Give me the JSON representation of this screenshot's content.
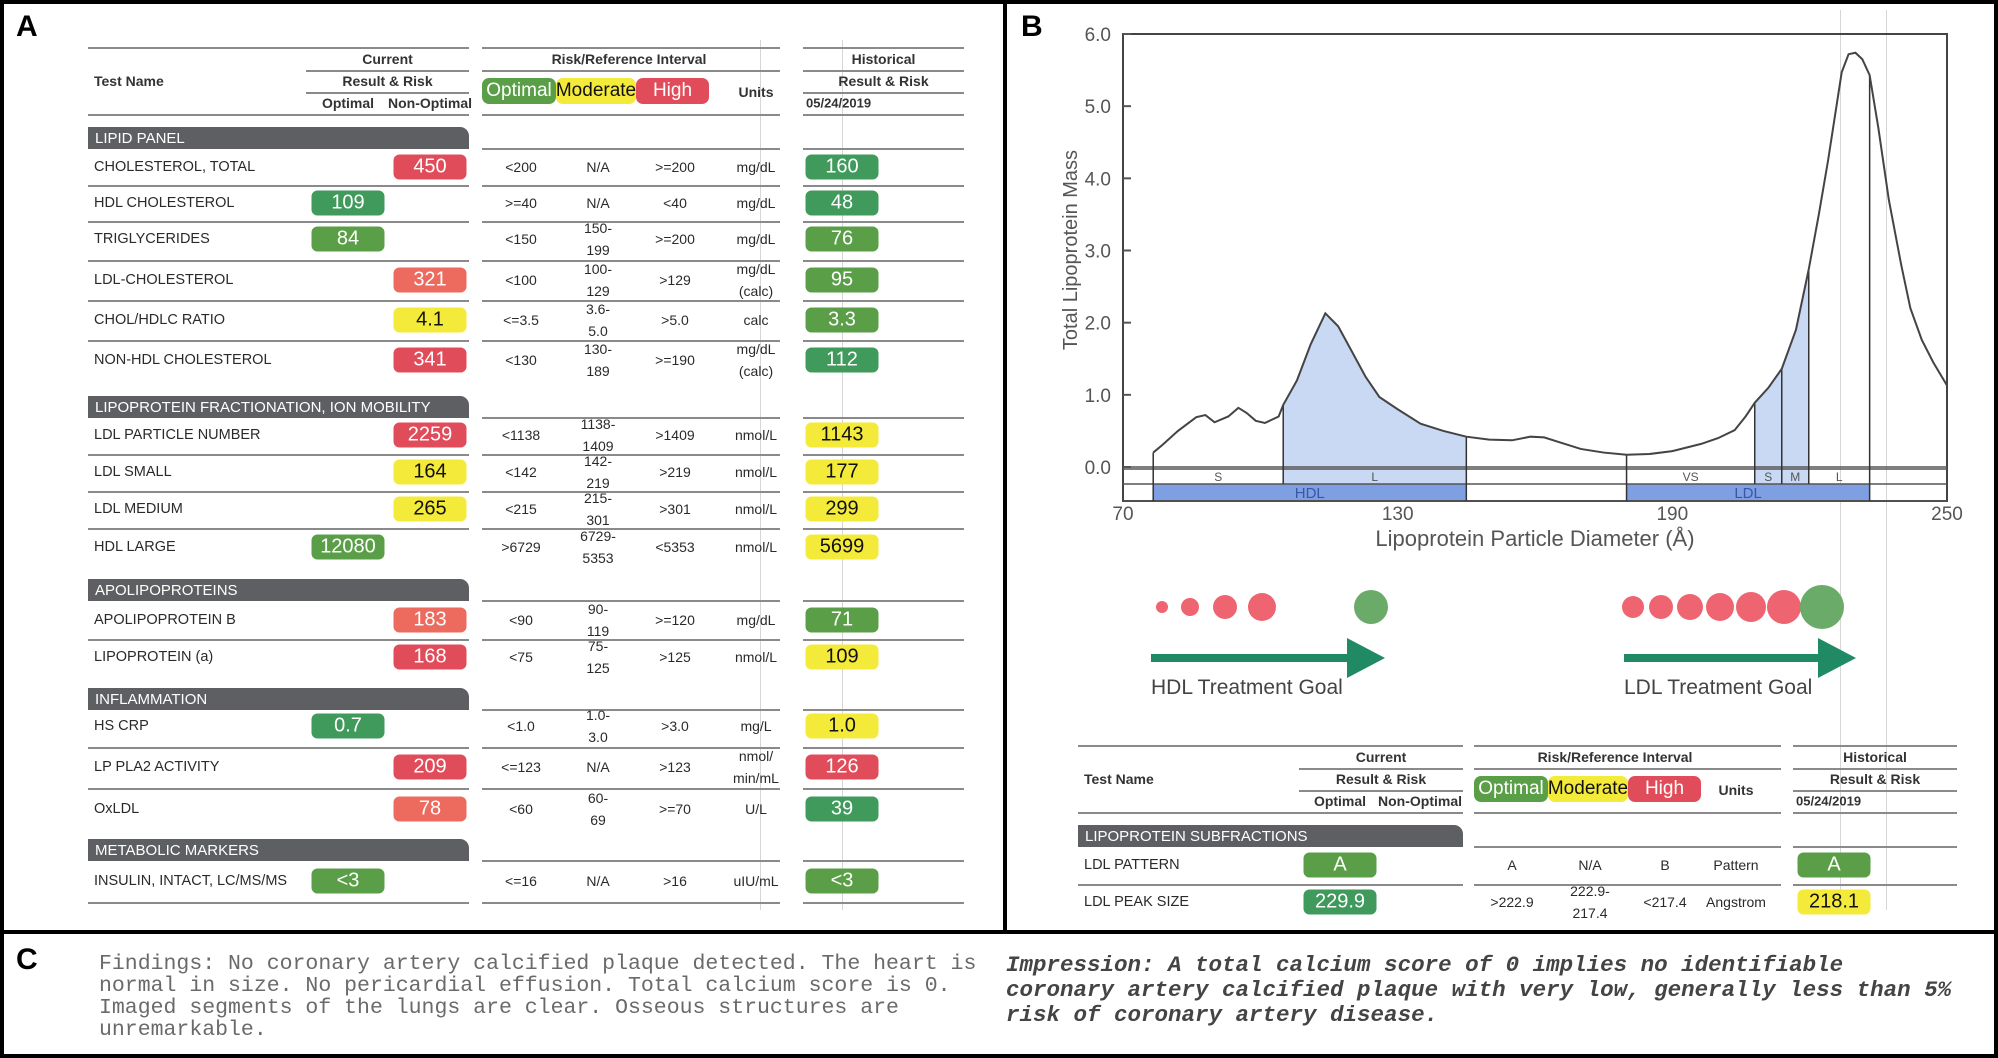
{
  "panel_labels": {
    "a": "A",
    "b": "B",
    "c": "C"
  },
  "colors": {
    "optimal": "#3f9a5c",
    "optimal_alt": "#5a9f48",
    "moderate": "#f4ea3a",
    "high": "#e04c59",
    "high_alt": "#ec6a5e",
    "section": "#5e5f62",
    "hdl_shade": "#c9d9f3",
    "band_blue": "#7f9fe3",
    "arrow": "#1f8a64",
    "dot_red": "#ee6470",
    "dot_green": "#6aab6a"
  },
  "panel_a": {
    "header": {
      "test_name": "Test Name",
      "current": "Current",
      "result_risk": "Result & Risk",
      "optimal": "Optimal",
      "non_optimal": "Non-Optimal",
      "risk_interval": "Risk/Reference Interval",
      "legend_optimal": "Optimal",
      "legend_moderate": "Moderate",
      "legend_high": "High",
      "units": "Units",
      "historical": "Historical",
      "hist_result_risk": "Result & Risk",
      "hist_date": "05/24/2019"
    },
    "sections": [
      {
        "title": "LIPID PANEL",
        "rows": [
          {
            "name": "CHOLESTEROL, TOTAL",
            "current": "450",
            "column": "non_optimal",
            "status": "high",
            "optimal": "<200",
            "moderate": "N/A",
            "high": ">=200",
            "units": "mg/dL",
            "historical": "160",
            "historical_status": "optimal"
          },
          {
            "name": "HDL CHOLESTEROL",
            "current": "109",
            "column": "optimal",
            "status": "optimal",
            "optimal": ">=40",
            "moderate": "N/A",
            "high": "<40",
            "units": "mg/dL",
            "historical": "48",
            "historical_status": "optimal"
          },
          {
            "name": "TRIGLYCERIDES",
            "current": "84",
            "column": "optimal",
            "status": "optimal_alt",
            "optimal": "<150",
            "moderate": "150-199",
            "high": ">=200",
            "units": "mg/dL",
            "historical": "76",
            "historical_status": "optimal_alt"
          },
          {
            "name": "LDL-CHOLESTEROL",
            "current": "321",
            "column": "non_optimal",
            "status": "high_alt",
            "optimal": "<100",
            "moderate": "100-129",
            "high": ">129",
            "units": "mg/dL\n(calc)",
            "historical": "95",
            "historical_status": "optimal_alt"
          },
          {
            "name": "CHOL/HDLC RATIO",
            "current": "4.1",
            "column": "non_optimal",
            "status": "moderate",
            "optimal": "<=3.5",
            "moderate": "3.6-5.0",
            "high": ">5.0",
            "units": "calc",
            "historical": "3.3",
            "historical_status": "optimal_alt"
          },
          {
            "name": "NON-HDL CHOLESTEROL",
            "current": "341",
            "column": "non_optimal",
            "status": "high",
            "optimal": "<130",
            "moderate": "130-189",
            "high": ">=190",
            "units": "mg/dL\n(calc)",
            "historical": "112",
            "historical_status": "optimal"
          }
        ]
      },
      {
        "title": "LIPOPROTEIN FRACTIONATION, ION MOBILITY",
        "rows": [
          {
            "name": "LDL PARTICLE NUMBER",
            "current": "2259",
            "column": "non_optimal",
            "status": "high",
            "optimal": "<1138",
            "moderate": "1138-1409",
            "high": ">1409",
            "units": "nmol/L",
            "historical": "1143",
            "historical_status": "moderate"
          },
          {
            "name": "LDL SMALL",
            "current": "164",
            "column": "non_optimal",
            "status": "moderate",
            "optimal": "<142",
            "moderate": "142-219",
            "high": ">219",
            "units": "nmol/L",
            "historical": "177",
            "historical_status": "moderate"
          },
          {
            "name": "LDL MEDIUM",
            "current": "265",
            "column": "non_optimal",
            "status": "moderate",
            "optimal": "<215",
            "moderate": "215-301",
            "high": ">301",
            "units": "nmol/L",
            "historical": "299",
            "historical_status": "moderate"
          },
          {
            "name": "HDL LARGE",
            "current": "12080",
            "column": "optimal",
            "status": "optimal_alt",
            "optimal": ">6729",
            "moderate": "6729-5353",
            "high": "<5353",
            "units": "nmol/L",
            "historical": "5699",
            "historical_status": "moderate"
          }
        ]
      },
      {
        "title": "APOLIPOPROTEINS",
        "rows": [
          {
            "name": "APOLIPOPROTEIN B",
            "current": "183",
            "column": "non_optimal",
            "status": "high_alt",
            "optimal": "<90",
            "moderate": "90-119",
            "high": ">=120",
            "units": "mg/dL",
            "historical": "71",
            "historical_status": "optimal_alt"
          },
          {
            "name": "LIPOPROTEIN (a)",
            "current": "168",
            "column": "non_optimal",
            "status": "high",
            "optimal": "<75",
            "moderate": "75-125",
            "high": ">125",
            "units": "nmol/L",
            "historical": "109",
            "historical_status": "moderate"
          }
        ]
      },
      {
        "title": "INFLAMMATION",
        "rows": [
          {
            "name": "HS CRP",
            "current": "0.7",
            "column": "optimal",
            "status": "optimal",
            "optimal": "<1.0",
            "moderate": "1.0-3.0",
            "high": ">3.0",
            "units": "mg/L",
            "historical": "1.0",
            "historical_status": "moderate"
          },
          {
            "name": "LP PLA2 ACTIVITY",
            "current": "209",
            "column": "non_optimal",
            "status": "high",
            "optimal": "<=123",
            "moderate": "N/A",
            "high": ">123",
            "units": "nmol/\nmin/mL",
            "historical": "126",
            "historical_status": "high"
          },
          {
            "name": "OxLDL",
            "current": "78",
            "column": "non_optimal",
            "status": "high_alt",
            "optimal": "<60",
            "moderate": "60-69",
            "high": ">=70",
            "units": "U/L",
            "historical": "39",
            "historical_status": "optimal"
          }
        ]
      },
      {
        "title": "METABOLIC MARKERS",
        "rows": [
          {
            "name": "INSULIN, INTACT, LC/MS/MS",
            "current": "<3",
            "column": "optimal",
            "status": "optimal_alt",
            "optimal": "<=16",
            "moderate": "N/A",
            "high": ">16",
            "units": "uIU/mL",
            "historical": "<3",
            "historical_status": "optimal_alt"
          }
        ]
      }
    ]
  },
  "panel_b": {
    "chart_data": {
      "type": "area",
      "title": "",
      "xlabel": "Lipoprotein Particle Diameter (Å)",
      "ylabel": "Total Lipoprotein Mass",
      "xlim": [
        70,
        250
      ],
      "ylim": [
        0,
        6
      ],
      "x_ticks": [
        "70",
        "130",
        "190",
        "250"
      ],
      "x_tick_values": [
        70,
        130,
        190,
        250
      ],
      "y_ticks": [
        "0.0",
        "1.0",
        "2.0",
        "3.0",
        "4.0",
        "5.0",
        "6.0"
      ],
      "y_tick_values": [
        0,
        1,
        2,
        3,
        4,
        5,
        6
      ],
      "grid": false,
      "series": [
        {
          "name": "Total Lipoprotein Mass",
          "points": [
            [
              76.6,
              0.2
            ],
            [
              78.5,
              0.3
            ],
            [
              82,
              0.5
            ],
            [
              86,
              0.69
            ],
            [
              88,
              0.72
            ],
            [
              90,
              0.62
            ],
            [
              93,
              0.7
            ],
            [
              95.2,
              0.82
            ],
            [
              97,
              0.75
            ],
            [
              99,
              0.64
            ],
            [
              101,
              0.61
            ],
            [
              104,
              0.7
            ],
            [
              105,
              0.86
            ],
            [
              108,
              1.2
            ],
            [
              111,
              1.7
            ],
            [
              114.2,
              2.13
            ],
            [
              117,
              1.95
            ],
            [
              120,
              1.6
            ],
            [
              123,
              1.25
            ],
            [
              126,
              0.97
            ],
            [
              130,
              0.8
            ],
            [
              135,
              0.6
            ],
            [
              140,
              0.5
            ],
            [
              145,
              0.42
            ],
            [
              150,
              0.38
            ],
            [
              155,
              0.37
            ],
            [
              159,
              0.42
            ],
            [
              162,
              0.41
            ],
            [
              166,
              0.33
            ],
            [
              170,
              0.25
            ],
            [
              175,
              0.2
            ],
            [
              180,
              0.17
            ],
            [
              185,
              0.18
            ],
            [
              190,
              0.22
            ],
            [
              196.3,
              0.32
            ],
            [
              200,
              0.4
            ],
            [
              203.6,
              0.51
            ],
            [
              206,
              0.7
            ],
            [
              208,
              0.89
            ],
            [
              211,
              1.1
            ],
            [
              213.9,
              1.36
            ],
            [
              217,
              1.9
            ],
            [
              219.8,
              2.74
            ],
            [
              222,
              3.5
            ],
            [
              224,
              4.24
            ],
            [
              227,
              5.47
            ],
            [
              228.5,
              5.72
            ],
            [
              230,
              5.74
            ],
            [
              231.5,
              5.65
            ],
            [
              233.1,
              5.43
            ],
            [
              235,
              4.7
            ],
            [
              237.3,
              3.7
            ],
            [
              240,
              2.8
            ],
            [
              242,
              2.2
            ],
            [
              244.5,
              1.76
            ],
            [
              247,
              1.45
            ],
            [
              250,
              1.13
            ]
          ]
        }
      ],
      "shaded_ranges": [
        [
          105,
          145
        ],
        [
          208,
          213.9
        ],
        [
          213.9,
          219.8
        ]
      ],
      "divider_x": [
        76.6,
        105,
        145,
        180,
        208,
        213.9,
        219.8,
        233.1
      ],
      "subclass_bands": [
        {
          "label": "S",
          "from": 76.6,
          "to": 105,
          "shaded": false
        },
        {
          "label": "L",
          "from": 105,
          "to": 145,
          "shaded": true
        },
        {
          "label": "VS",
          "from": 180,
          "to": 208,
          "shaded": false
        },
        {
          "label": "S",
          "from": 208,
          "to": 213.9,
          "shaded": true
        },
        {
          "label": "M",
          "from": 213.9,
          "to": 219.8,
          "shaded": true
        },
        {
          "label": "L",
          "from": 219.8,
          "to": 233.1,
          "shaded": false
        }
      ],
      "class_bands": [
        {
          "label": "HDL",
          "from": 76.6,
          "to": 145
        },
        {
          "label": "LDL",
          "from": 180,
          "to": 233.1
        }
      ]
    },
    "goals": {
      "hdl_label": "HDL Treatment Goal",
      "ldl_label": "LDL Treatment Goal"
    },
    "table": {
      "header": {
        "test_name": "Test Name",
        "current": "Current",
        "result_risk": "Result & Risk",
        "optimal": "Optimal",
        "non_optimal": "Non-Optimal",
        "risk_interval": "Risk/Reference Interval",
        "legend_optimal": "Optimal",
        "legend_moderate": "Moderate",
        "legend_high": "High",
        "units": "Units",
        "historical": "Historical",
        "hist_result_risk": "Result & Risk",
        "hist_date": "05/24/2019"
      },
      "section_title": "LIPOPROTEIN SUBFRACTIONS",
      "rows": [
        {
          "name": "LDL PATTERN",
          "current": "A",
          "column": "optimal",
          "status": "optimal_alt",
          "optimal": "A",
          "moderate": "N/A",
          "high": "B",
          "units": "Pattern",
          "historical": "A",
          "historical_status": "optimal_alt"
        },
        {
          "name": "LDL PEAK SIZE",
          "current": "229.9",
          "column": "optimal",
          "status": "optimal",
          "optimal": ">222.9",
          "moderate": "222.9-217.4",
          "high": "<217.4",
          "units": "Angstrom",
          "historical": "218.1",
          "historical_status": "moderate"
        }
      ]
    }
  },
  "panel_c": {
    "findings": [
      "Findings: No coronary artery calcified plaque detected. The heart is",
      "normal in size. No pericardial effusion. Total calcium score is 0.",
      "Imaged segments of the lungs are clear. Osseous structures are",
      "unremarkable."
    ],
    "impression": [
      "Impression: A total calcium score of 0 implies no identifiable",
      "coronary artery calcified plaque with very low, generally less than 5%",
      "risk of coronary artery disease."
    ]
  }
}
